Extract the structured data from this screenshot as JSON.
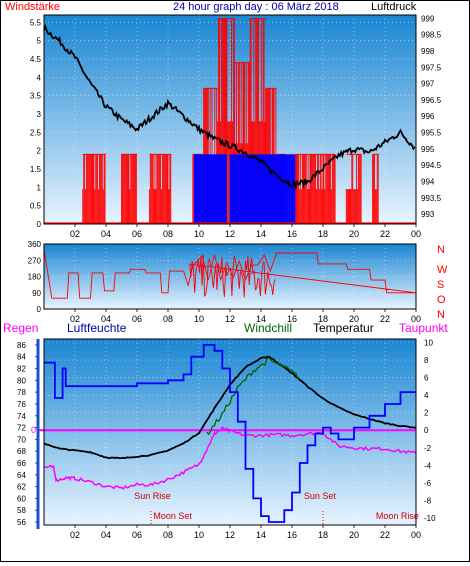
{
  "colors": {
    "panel_top": "#1a86d2",
    "panel_bottom": "#e8f4ff",
    "red": "#ff0000",
    "blue": "#0000ff",
    "navy": "#0000aa",
    "black": "#000000",
    "green": "#006600",
    "magenta": "#ff00ff",
    "axis_blue": "#1e50c8"
  },
  "chart_data": [
    {
      "type": "bar",
      "title": "24 hour graph day : 06 März 2018",
      "left_label": "Windstärke",
      "right_label": "Luftdruck",
      "x_ticks": [
        "02",
        "04",
        "06",
        "08",
        "10",
        "12",
        "14",
        "16",
        "18",
        "20",
        "22",
        "00"
      ],
      "y_left_ticks": [
        "0",
        "0.5",
        "1",
        "1.5",
        "2",
        "2.5",
        "3",
        "3.5",
        "4",
        "4.5",
        "5",
        "5.5"
      ],
      "y_left_range": [
        0,
        5.7
      ],
      "y_right_ticks": [
        "993",
        "993.5",
        "994",
        "994.5",
        "995",
        "995.5",
        "996",
        "996.5",
        "997",
        "997.5",
        "998",
        "998.5",
        "999"
      ],
      "y_right_range": [
        992.7,
        999.1
      ],
      "series": [
        {
          "name": "Windstärke",
          "kind": "bars",
          "segments": [
            {
              "h": [
                2.5,
                4.0
              ],
              "v": 1.9
            },
            {
              "h": [
                5.0,
                6.0
              ],
              "v": 1.9
            },
            {
              "h": [
                6.8,
                8.2
              ],
              "v": 1.9
            },
            {
              "h": [
                9.6,
                10.2
              ],
              "v": 1.9
            },
            {
              "h": [
                10.3,
                11.2
              ],
              "v": 3.7
            },
            {
              "h": [
                11.2,
                12.3
              ],
              "v": 5.6
            },
            {
              "h": [
                12.3,
                13.3
              ],
              "v": 4.4
            },
            {
              "h": [
                13.3,
                14.3
              ],
              "v": 5.6
            },
            {
              "h": [
                14.3,
                15.0
              ],
              "v": 3.7
            },
            {
              "h": [
                15.0,
                15.6
              ],
              "v": 1.9
            },
            {
              "h": [
                16.2,
                18.8
              ],
              "v": 1.9
            },
            {
              "h": [
                19.5,
                20.5
              ],
              "v": 1.9
            },
            {
              "h": [
                21.2,
                21.6
              ],
              "v": 1.9
            }
          ]
        },
        {
          "name": "Windstärke",
          "kind": "bars-blue",
          "segments": [
            {
              "h": [
                9.7,
                11.8
              ],
              "v": 1.9
            },
            {
              "h": [
                12.0,
                16.2
              ],
              "v": 1.9
            }
          ]
        },
        {
          "name": "Luftdruck",
          "kind": "line",
          "points": [
            [
              0,
              998.7
            ],
            [
              1,
              998.3
            ],
            [
              2,
              997.8
            ],
            [
              3,
              997.0
            ],
            [
              4,
              996.3
            ],
            [
              5,
              995.9
            ],
            [
              6,
              995.6
            ],
            [
              7,
              996.0
            ],
            [
              8,
              996.4
            ],
            [
              9,
              996.0
            ],
            [
              10,
              995.6
            ],
            [
              11,
              995.3
            ],
            [
              12,
              995.1
            ],
            [
              13,
              994.9
            ],
            [
              14,
              994.6
            ],
            [
              15,
              994.2
            ],
            [
              16,
              993.9
            ],
            [
              17,
              994.0
            ],
            [
              18,
              994.4
            ],
            [
              19,
              994.8
            ],
            [
              20,
              995.0
            ],
            [
              21,
              994.9
            ],
            [
              22,
              995.2
            ],
            [
              23,
              995.5
            ],
            [
              24,
              995.0
            ]
          ]
        }
      ]
    },
    {
      "type": "line",
      "title": "",
      "x_ticks": [
        "02",
        "04",
        "06",
        "08",
        "10",
        "12",
        "14",
        "16",
        "18",
        "20",
        "22",
        "00"
      ],
      "y_left_ticks": [
        "0",
        "90",
        "180",
        "270",
        "360"
      ],
      "y_left_range": [
        0,
        360
      ],
      "y_right_labels": [
        "N",
        "W",
        "S",
        "O",
        "N"
      ],
      "series": [
        {
          "name": "Windrichtung",
          "kind": "step",
          "points": [
            [
              0,
              330
            ],
            [
              0.5,
              60
            ],
            [
              1.5,
              60
            ],
            [
              1.6,
              200
            ],
            [
              2.2,
              200
            ],
            [
              2.3,
              60
            ],
            [
              3.0,
              60
            ],
            [
              3.1,
              200
            ],
            [
              3.8,
              200
            ],
            [
              3.9,
              100
            ],
            [
              4.5,
              100
            ],
            [
              4.6,
              200
            ],
            [
              5.5,
              200
            ],
            [
              5.6,
              220
            ],
            [
              6.0,
              220
            ],
            [
              6.5,
              220
            ],
            [
              6.6,
              200
            ],
            [
              7.5,
              200
            ],
            [
              7.6,
              90
            ],
            [
              8.0,
              90
            ],
            [
              8.1,
              210
            ],
            [
              9.0,
              210
            ],
            [
              9.3,
              130
            ],
            [
              9.6,
              250
            ],
            [
              10.2,
              300
            ],
            [
              10.6,
              210
            ],
            [
              11.0,
              260
            ],
            [
              11.4,
              190
            ],
            [
              11.8,
              280
            ],
            [
              12.2,
              220
            ],
            [
              12.6,
              300
            ],
            [
              13.0,
              170
            ],
            [
              13.4,
              280
            ],
            [
              13.8,
              230
            ],
            [
              14.2,
              290
            ],
            [
              14.6,
              180
            ],
            [
              15.0,
              310
            ],
            [
              16.0,
              310
            ],
            [
              17.6,
              310
            ],
            [
              17.7,
              250
            ],
            [
              19.5,
              250
            ],
            [
              19.6,
              220
            ],
            [
              21.0,
              220
            ],
            [
              21.1,
              160
            ],
            [
              22.0,
              160
            ],
            [
              22.1,
              90
            ],
            [
              24,
              90
            ]
          ]
        }
      ]
    },
    {
      "type": "line",
      "title": "",
      "legend": [
        "Regen",
        "Luftfeuchte",
        "Windchill",
        "Temperatur",
        "Taupunkt"
      ],
      "x_ticks": [
        "02",
        "04",
        "06",
        "08",
        "10",
        "12",
        "14",
        "16",
        "18",
        "20",
        "22",
        "00"
      ],
      "y_left_ticks": [
        "56",
        "58",
        "60",
        "62",
        "64",
        "66",
        "68",
        "70",
        "72",
        "74",
        "76",
        "78",
        "80",
        "82",
        "84",
        "86"
      ],
      "y_left_range": [
        55.5,
        87
      ],
      "y_right_ticks": [
        "-10",
        "-8",
        "-6",
        "-4",
        "-2",
        "0",
        "2",
        "4",
        "6",
        "8",
        "10"
      ],
      "y_right_range": [
        -10.8,
        10.4
      ],
      "zero_marker": "0",
      "annotations": [
        {
          "text": "Sun Rise",
          "hour": 7.0
        },
        {
          "text": "Moon Set",
          "hour": 8.3
        },
        {
          "text": "Sun Set",
          "hour": 17.8
        },
        {
          "text": "Moon Rise",
          "hour": 22.8
        }
      ],
      "event_lines": [
        6.9,
        18.0
      ],
      "series": [
        {
          "name": "Luftfeuchte",
          "axis": "left",
          "points": [
            [
              0,
              83
            ],
            [
              0.6,
              83
            ],
            [
              0.7,
              77
            ],
            [
              1.0,
              77
            ],
            [
              1.2,
              82
            ],
            [
              1.4,
              79
            ],
            [
              4,
              79
            ],
            [
              6,
              79.5
            ],
            [
              8,
              80
            ],
            [
              9,
              81
            ],
            [
              9.5,
              84
            ],
            [
              10.3,
              86
            ],
            [
              11,
              85
            ],
            [
              11.5,
              82
            ],
            [
              12,
              78
            ],
            [
              12.5,
              73
            ],
            [
              13,
              65
            ],
            [
              13.5,
              60
            ],
            [
              14,
              57
            ],
            [
              14.5,
              56
            ],
            [
              15.5,
              58
            ],
            [
              16,
              61
            ],
            [
              16.5,
              66
            ],
            [
              17,
              69
            ],
            [
              17.5,
              71
            ],
            [
              18,
              72
            ],
            [
              18.5,
              71
            ],
            [
              19,
              70
            ],
            [
              20,
              72
            ],
            [
              21,
              74
            ],
            [
              22,
              76
            ],
            [
              23,
              78
            ],
            [
              24,
              78
            ]
          ]
        },
        {
          "name": "Temperatur",
          "axis": "right",
          "points": [
            [
              0,
              -1.5
            ],
            [
              1,
              -2.1
            ],
            [
              2,
              -2.3
            ],
            [
              3,
              -2.5
            ],
            [
              4,
              -3.1
            ],
            [
              5,
              -3.2
            ],
            [
              6,
              -3.0
            ],
            [
              7,
              -2.8
            ],
            [
              8,
              -2.3
            ],
            [
              9,
              -1.5
            ],
            [
              10,
              -0.3
            ],
            [
              11,
              2.5
            ],
            [
              12,
              5.2
            ],
            [
              13,
              7.2
            ],
            [
              14,
              8.2
            ],
            [
              14.5,
              8.4
            ],
            [
              15,
              7.8
            ],
            [
              16,
              6.5
            ],
            [
              17,
              5.0
            ],
            [
              18,
              3.6
            ],
            [
              19,
              2.6
            ],
            [
              20,
              1.8
            ],
            [
              21,
              1.3
            ],
            [
              22,
              0.8
            ],
            [
              23,
              0.5
            ],
            [
              24,
              0.3
            ]
          ]
        },
        {
          "name": "Windchill",
          "axis": "right",
          "points": [
            [
              10.5,
              -0.5
            ],
            [
              11.5,
              1.8
            ],
            [
              12.5,
              4.8
            ],
            [
              13.5,
              6.8
            ],
            [
              14.5,
              8.0
            ],
            [
              15.5,
              7.2
            ],
            [
              16.5,
              6.0
            ]
          ]
        },
        {
          "name": "Taupunkt",
          "axis": "right",
          "points": [
            [
              0,
              -4.2
            ],
            [
              0.6,
              -4.2
            ],
            [
              0.8,
              -5.7
            ],
            [
              1.5,
              -5.4
            ],
            [
              2,
              -5.5
            ],
            [
              3,
              -5.9
            ],
            [
              4,
              -6.4
            ],
            [
              5,
              -6.6
            ],
            [
              6,
              -6.2
            ],
            [
              7,
              -6.2
            ],
            [
              8,
              -5.6
            ],
            [
              9,
              -4.8
            ],
            [
              10,
              -3.9
            ],
            [
              10.5,
              -2.2
            ],
            [
              11,
              -0.4
            ],
            [
              11.5,
              0.2
            ],
            [
              12,
              -0.1
            ],
            [
              13,
              -0.6
            ],
            [
              14,
              -0.6
            ],
            [
              15,
              -0.5
            ],
            [
              16,
              -0.6
            ],
            [
              17,
              -0.4
            ],
            [
              18,
              -0.3
            ],
            [
              19,
              -1.8
            ],
            [
              20,
              -2.0
            ],
            [
              21,
              -2.1
            ],
            [
              22,
              -2.1
            ],
            [
              23,
              -2.4
            ],
            [
              24,
              -2.6
            ]
          ]
        }
      ]
    }
  ]
}
